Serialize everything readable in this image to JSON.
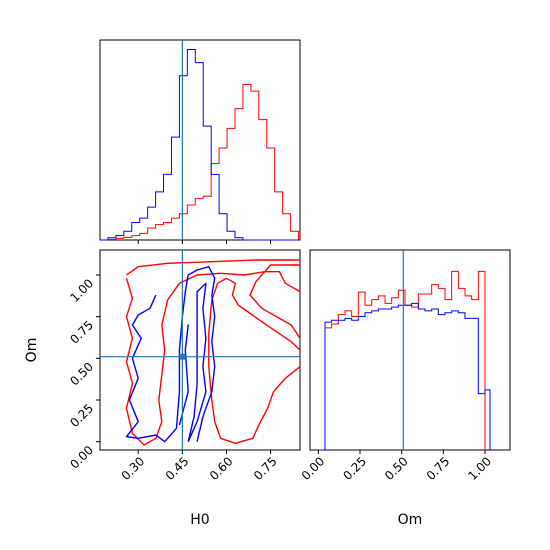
{
  "chart_data": [
    {
      "type": "histogram",
      "panel": "H0-marginal",
      "xlim": [
        0.17,
        0.85
      ],
      "truth": 0.45,
      "x_ticks": [
        0.3,
        0.45,
        0.6,
        0.75
      ],
      "series": [
        {
          "color": "#ff0000",
          "edges": [
            0.17,
            0.197,
            0.224,
            0.251,
            0.278,
            0.305,
            0.332,
            0.359,
            0.386,
            0.413,
            0.44,
            0.467,
            0.494,
            0.521,
            0.548,
            0.575,
            0.602,
            0.629,
            0.656,
            0.683,
            0.71,
            0.737,
            0.764,
            0.791,
            0.818,
            0.845
          ],
          "counts": [
            0,
            0.3,
            0.8,
            1.2,
            2.0,
            3.0,
            5.5,
            7.0,
            8.0,
            10.0,
            12.0,
            16.0,
            19.0,
            20.0,
            35.0,
            42.0,
            51.0,
            60.0,
            71.0,
            68.0,
            55.0,
            42.0,
            22.0,
            12.0,
            4.0
          ]
        },
        {
          "color": "#0000ff",
          "edges": [
            0.17,
            0.197,
            0.224,
            0.251,
            0.278,
            0.305,
            0.332,
            0.359,
            0.386,
            0.413,
            0.44,
            0.467,
            0.494,
            0.521,
            0.548,
            0.575,
            0.602,
            0.629,
            0.656,
            0.683,
            0.71,
            0.737,
            0.764,
            0.791,
            0.818,
            0.845
          ],
          "counts": [
            0,
            1.0,
            2.0,
            4.0,
            8.0,
            10.0,
            15.0,
            22.0,
            30.0,
            47.0,
            75.0,
            87.0,
            81.0,
            52.0,
            30.0,
            12.0,
            4.0,
            1.0,
            0,
            0,
            0,
            0,
            0,
            0,
            0
          ]
        }
      ]
    },
    {
      "type": "contour",
      "panel": "H0-Om-joint",
      "xlim": [
        0.17,
        0.85
      ],
      "ylim": [
        -0.05,
        1.15
      ],
      "xlabel": "H0",
      "ylabel": "Om",
      "truth": [
        0.45,
        0.51
      ],
      "x_ticks": [
        0.3,
        0.45,
        0.6,
        0.75
      ],
      "y_ticks": [
        0.0,
        0.25,
        0.5,
        0.75,
        1.0
      ],
      "tick_labels": {
        "x": [
          "0.30",
          "0.45",
          "0.60",
          "0.75"
        ],
        "y": [
          "0.00",
          "0.25",
          "0.50",
          "0.75",
          "1.00"
        ]
      },
      "series": [
        {
          "color": "#ff0000",
          "contours": [
            [
              [
                0.26,
                1.0
              ],
              [
                0.3,
                1.05
              ],
              [
                0.4,
                1.07
              ],
              [
                0.55,
                1.08
              ],
              [
                0.7,
                1.09
              ],
              [
                0.85,
                1.09
              ],
              [
                0.85,
                1.06
              ],
              [
                0.75,
                1.06
              ],
              [
                0.7,
                0.96
              ],
              [
                0.68,
                0.88
              ],
              [
                0.72,
                0.8
              ],
              [
                0.82,
                0.7
              ],
              [
                0.85,
                0.62
              ]
            ],
            [
              [
                0.85,
                0.45
              ],
              [
                0.8,
                0.38
              ],
              [
                0.76,
                0.3
              ],
              [
                0.74,
                0.2
              ],
              [
                0.71,
                0.1
              ],
              [
                0.69,
                0.02
              ],
              [
                0.63,
                -0.01
              ],
              [
                0.58,
                0.02
              ],
              [
                0.56,
                0.12
              ],
              [
                0.55,
                0.25
              ],
              [
                0.54,
                0.45
              ],
              [
                0.54,
                0.65
              ],
              [
                0.55,
                0.85
              ],
              [
                0.57,
                0.95
              ],
              [
                0.6,
                0.98
              ],
              [
                0.63,
                0.95
              ],
              [
                0.62,
                0.88
              ],
              [
                0.64,
                0.82
              ],
              [
                0.72,
                0.72
              ],
              [
                0.82,
                0.6
              ],
              [
                0.85,
                0.55
              ]
            ],
            [
              [
                0.26,
                0.98
              ],
              [
                0.28,
                0.86
              ],
              [
                0.26,
                0.75
              ],
              [
                0.28,
                0.62
              ],
              [
                0.26,
                0.48
              ],
              [
                0.28,
                0.35
              ],
              [
                0.26,
                0.2
              ],
              [
                0.28,
                0.05
              ],
              [
                0.32,
                -0.02
              ],
              [
                0.36,
                0.02
              ],
              [
                0.38,
                0.12
              ],
              [
                0.37,
                0.25
              ],
              [
                0.38,
                0.4
              ],
              [
                0.39,
                0.55
              ],
              [
                0.38,
                0.7
              ],
              [
                0.4,
                0.85
              ],
              [
                0.44,
                0.95
              ],
              [
                0.5,
                1.0
              ],
              [
                0.58,
                1.01
              ],
              [
                0.66,
                1.0
              ],
              [
                0.73,
                1.02
              ],
              [
                0.78,
                1.02
              ],
              [
                0.8,
                0.95
              ],
              [
                0.85,
                0.9
              ]
            ]
          ]
        },
        {
          "color": "#0000ff",
          "contours": [
            [
              [
                0.36,
                0.88
              ],
              [
                0.34,
                0.8
              ],
              [
                0.3,
                0.76
              ],
              [
                0.28,
                0.7
              ],
              [
                0.31,
                0.62
              ],
              [
                0.28,
                0.5
              ],
              [
                0.3,
                0.38
              ],
              [
                0.27,
                0.25
              ],
              [
                0.3,
                0.12
              ],
              [
                0.26,
                0.03
              ],
              [
                0.3,
                0.02
              ],
              [
                0.36,
                0.04
              ],
              [
                0.39,
                0.0
              ],
              [
                0.43,
                0.08
              ],
              [
                0.44,
                0.3
              ],
              [
                0.44,
                0.55
              ],
              [
                0.45,
                0.75
              ],
              [
                0.46,
                0.9
              ],
              [
                0.47,
                1.0
              ],
              [
                0.5,
                1.03
              ],
              [
                0.54,
                1.05
              ],
              [
                0.56,
                0.98
              ],
              [
                0.55,
                0.88
              ],
              [
                0.56,
                0.75
              ],
              [
                0.55,
                0.6
              ],
              [
                0.56,
                0.45
              ],
              [
                0.55,
                0.3
              ],
              [
                0.52,
                0.15
              ],
              [
                0.5,
                0.0
              ]
            ],
            [
              [
                0.47,
                0.0
              ],
              [
                0.49,
                0.15
              ],
              [
                0.5,
                0.35
              ],
              [
                0.5,
                0.55
              ],
              [
                0.5,
                0.75
              ],
              [
                0.5,
                0.9
              ],
              [
                0.53,
                0.95
              ],
              [
                0.52,
                0.8
              ],
              [
                0.53,
                0.62
              ],
              [
                0.52,
                0.45
              ],
              [
                0.53,
                0.3
              ],
              [
                0.5,
                0.12
              ],
              [
                0.47,
                0.0
              ]
            ],
            [
              [
                0.44,
                0.1
              ],
              [
                0.47,
                0.3
              ],
              [
                0.46,
                0.55
              ],
              [
                0.47,
                0.7
              ],
              [
                0.46,
                0.55
              ],
              [
                0.47,
                0.3
              ],
              [
                0.44,
                0.1
              ]
            ]
          ]
        }
      ]
    },
    {
      "type": "histogram",
      "panel": "Om-marginal",
      "xlim": [
        -0.05,
        1.15
      ],
      "xlabel": "Om",
      "truth": 0.51,
      "x_ticks": [
        0.0,
        0.25,
        0.5,
        0.75,
        1.0
      ],
      "tick_labels": [
        "0.00",
        "0.25",
        "0.50",
        "0.75",
        "1.00"
      ],
      "series": [
        {
          "color": "#ff0000",
          "edges": [
            0.0,
            0.04,
            0.08,
            0.12,
            0.16,
            0.2,
            0.24,
            0.28,
            0.32,
            0.36,
            0.4,
            0.44,
            0.48,
            0.52,
            0.56,
            0.6,
            0.64,
            0.68,
            0.72,
            0.76,
            0.8,
            0.84,
            0.88,
            0.92,
            0.96,
            1.0
          ],
          "counts": [
            0,
            65,
            67,
            72,
            74,
            71,
            84,
            77,
            80,
            82,
            78,
            81,
            85,
            77,
            76,
            83,
            83,
            88,
            86,
            80,
            95,
            86,
            82,
            80,
            95
          ]
        },
        {
          "color": "#0000ff",
          "edges": [
            0.0,
            0.04,
            0.08,
            0.12,
            0.16,
            0.2,
            0.24,
            0.28,
            0.32,
            0.36,
            0.4,
            0.44,
            0.48,
            0.52,
            0.56,
            0.6,
            0.64,
            0.68,
            0.72,
            0.76,
            0.8,
            0.84,
            0.88,
            0.92,
            0.96,
            1.0,
            1.03
          ],
          "counts": [
            0,
            68,
            69,
            69,
            70,
            69,
            71,
            73,
            74,
            75,
            75,
            76,
            77,
            77,
            78,
            75,
            74,
            75,
            72,
            73,
            74,
            73,
            70,
            70,
            30,
            32
          ]
        }
      ]
    }
  ]
}
